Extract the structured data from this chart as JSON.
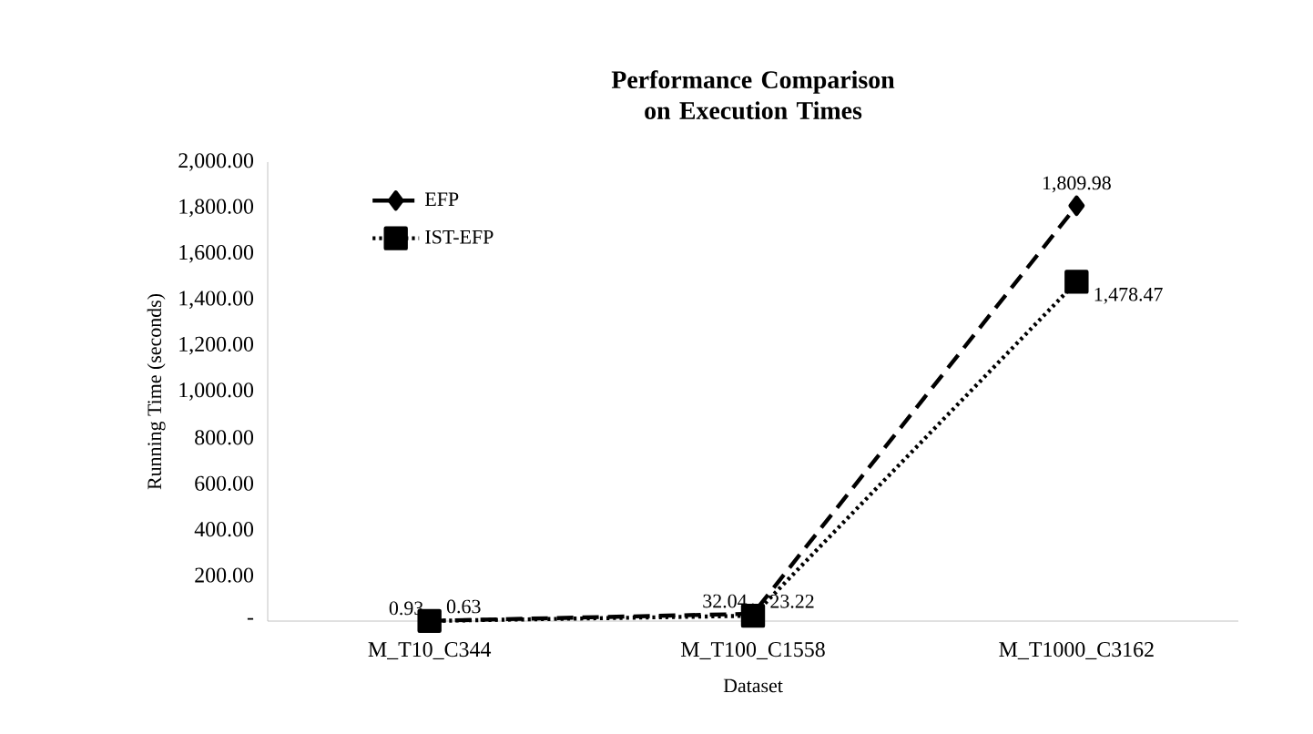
{
  "chart_data": {
    "type": "line",
    "title": "Performance Comparison on Execution Times",
    "xlabel": "Dataset",
    "ylabel": "Running Time (seconds)",
    "categories": [
      "M_T10_C344",
      "M_T100_C1558",
      "M_T1000_C3162"
    ],
    "series": [
      {
        "name": "EFP",
        "color": "#000000",
        "marker": "diamond",
        "line_style": "dashed",
        "values": [
          0.93,
          32.04,
          1809.98
        ],
        "value_labels": [
          "0.93",
          "32.04",
          "1,809.98"
        ]
      },
      {
        "name": "IST-EFP",
        "color": "#000000",
        "marker": "square",
        "line_style": "dotted",
        "values": [
          0.63,
          23.22,
          1478.47
        ],
        "value_labels": [
          "0.63",
          "23.22",
          "1,478.47"
        ]
      }
    ],
    "ylim": [
      0,
      2000
    ],
    "yticks": [
      {
        "value": 0,
        "label": "-"
      },
      {
        "value": 200,
        "label": "200.00"
      },
      {
        "value": 400,
        "label": "400.00"
      },
      {
        "value": 600,
        "label": "600.00"
      },
      {
        "value": 800,
        "label": "800.00"
      },
      {
        "value": 1000,
        "label": "1,000.00"
      },
      {
        "value": 1200,
        "label": "1,200.00"
      },
      {
        "value": 1400,
        "label": "1,400.00"
      },
      {
        "value": 1600,
        "label": "1,600.00"
      },
      {
        "value": 1800,
        "label": "1,800.00"
      },
      {
        "value": 2000,
        "label": "2,000.00"
      }
    ],
    "grid": false,
    "legend": "top left"
  }
}
